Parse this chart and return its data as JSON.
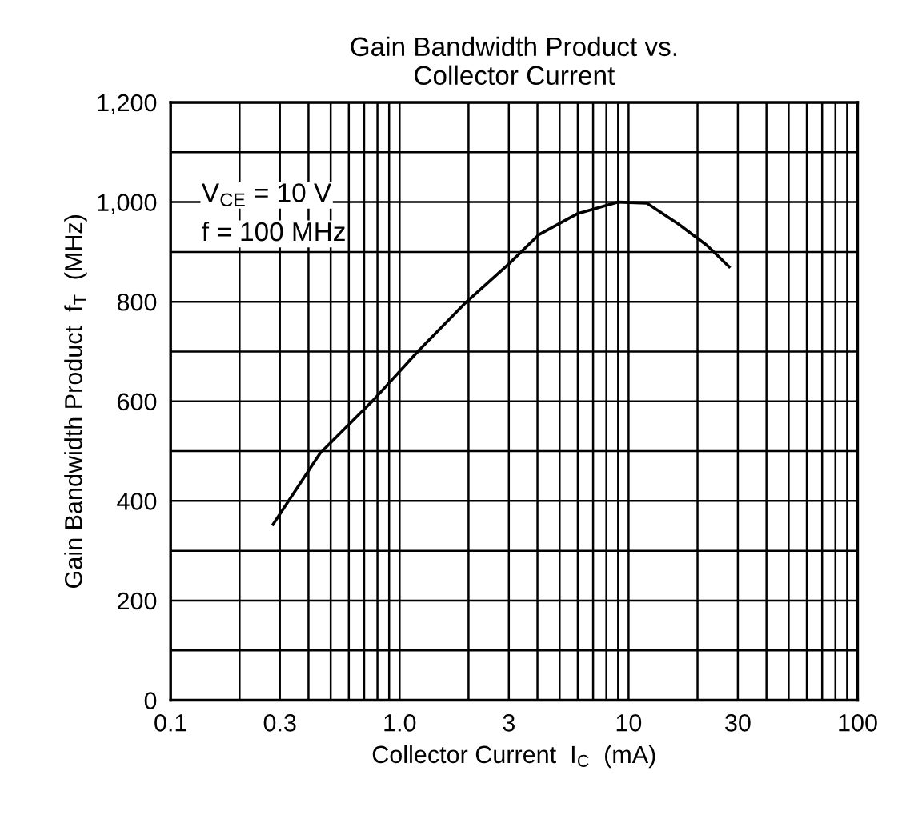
{
  "chart_data": {
    "type": "line",
    "title": "Gain Bandwidth Product vs.\nCollector Current",
    "xlabel": "Collector Current  I$_{C}$  (mA)",
    "ylabel": "Gain Bandwidth Product  f$_{T}$  (MHz)",
    "annotations": [
      "V$_{CE}$ = 10 V",
      "f = 100 MHz"
    ],
    "log": "x",
    "series": [
      {
        "color": "#000000",
        "x": [
          0.28,
          0.45,
          0.77,
          1.2,
          1.92,
          3,
          4.07,
          6,
          9,
          12,
          16.5,
          22,
          27.5
        ],
        "values": [
          353,
          496,
          603,
          700,
          796,
          876,
          935,
          977,
          1000,
          998,
          956,
          913,
          870
        ]
      }
    ],
    "xlim": [
      0.1,
      100
    ],
    "ylim": [
      0,
      1200
    ],
    "xticks": [
      {
        "value": 0.1,
        "label": "0.1"
      },
      {
        "value": 0.2,
        "label": null
      },
      {
        "value": 0.3,
        "label": "0.3"
      },
      {
        "value": 0.4,
        "label": null
      },
      {
        "value": 0.5,
        "label": null
      },
      {
        "value": 0.6,
        "label": null
      },
      {
        "value": 0.7,
        "label": null
      },
      {
        "value": 0.8,
        "label": null
      },
      {
        "value": 0.9,
        "label": null
      },
      {
        "value": 1,
        "label": "1.0"
      },
      {
        "value": 2,
        "label": null
      },
      3,
      {
        "value": 4,
        "label": null
      },
      {
        "value": 5,
        "label": null
      },
      {
        "value": 6,
        "label": null
      },
      {
        "value": 7,
        "label": null
      },
      {
        "value": 8,
        "label": null
      },
      {
        "value": 9,
        "label": null
      },
      10,
      {
        "value": 20,
        "label": null
      },
      30,
      {
        "value": 40,
        "label": null
      },
      {
        "value": 50,
        "label": null
      },
      {
        "value": 60,
        "label": null
      },
      {
        "value": 70,
        "label": null
      },
      {
        "value": 80,
        "label": null
      },
      {
        "value": 90,
        "label": null
      },
      100
    ],
    "yticks": [
      0,
      {
        "value": 100,
        "label": null
      },
      200,
      {
        "value": 300,
        "label": null
      },
      400,
      {
        "value": 500,
        "label": null
      },
      600,
      {
        "value": 700,
        "label": null
      },
      800,
      {
        "value": 900,
        "label": null
      },
      {
        "value": 1000,
        "label": "1,000"
      },
      {
        "value": 1100,
        "label": null
      },
      {
        "value": 1200,
        "label": "1,200"
      }
    ],
    "grid": true,
    "marker": "none",
    "line_style": "solid"
  }
}
